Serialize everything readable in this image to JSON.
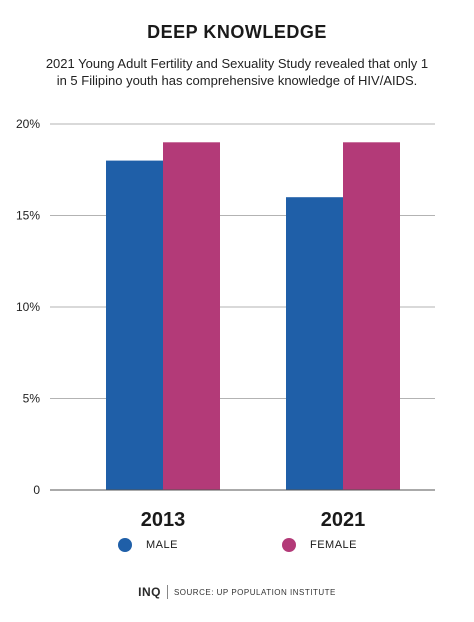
{
  "header": {
    "title": "DEEP KNOWLEDGE",
    "subtitle": "2021 Young Adult Fertility and Sexuality Study revealed that only 1 in 5 Filipino youth has comprehensive knowledge of HIV/AIDS."
  },
  "chart_data": {
    "type": "bar",
    "categories": [
      "2013",
      "2021"
    ],
    "series": [
      {
        "name": "MALE",
        "values": [
          18,
          16
        ],
        "color": "#1f5fa8"
      },
      {
        "name": "FEMALE",
        "values": [
          19,
          19
        ],
        "color": "#b33a78"
      }
    ],
    "ylim": [
      0,
      20
    ],
    "yticks": [
      0,
      5,
      10,
      15,
      20
    ],
    "ytick_labels": [
      "0",
      "5%",
      "10%",
      "15%",
      "20%"
    ],
    "grid": true,
    "legend": "bottom"
  },
  "footer": {
    "logo": "INQ",
    "source": "SOURCE: UP POPULATION INSTITUTE"
  }
}
